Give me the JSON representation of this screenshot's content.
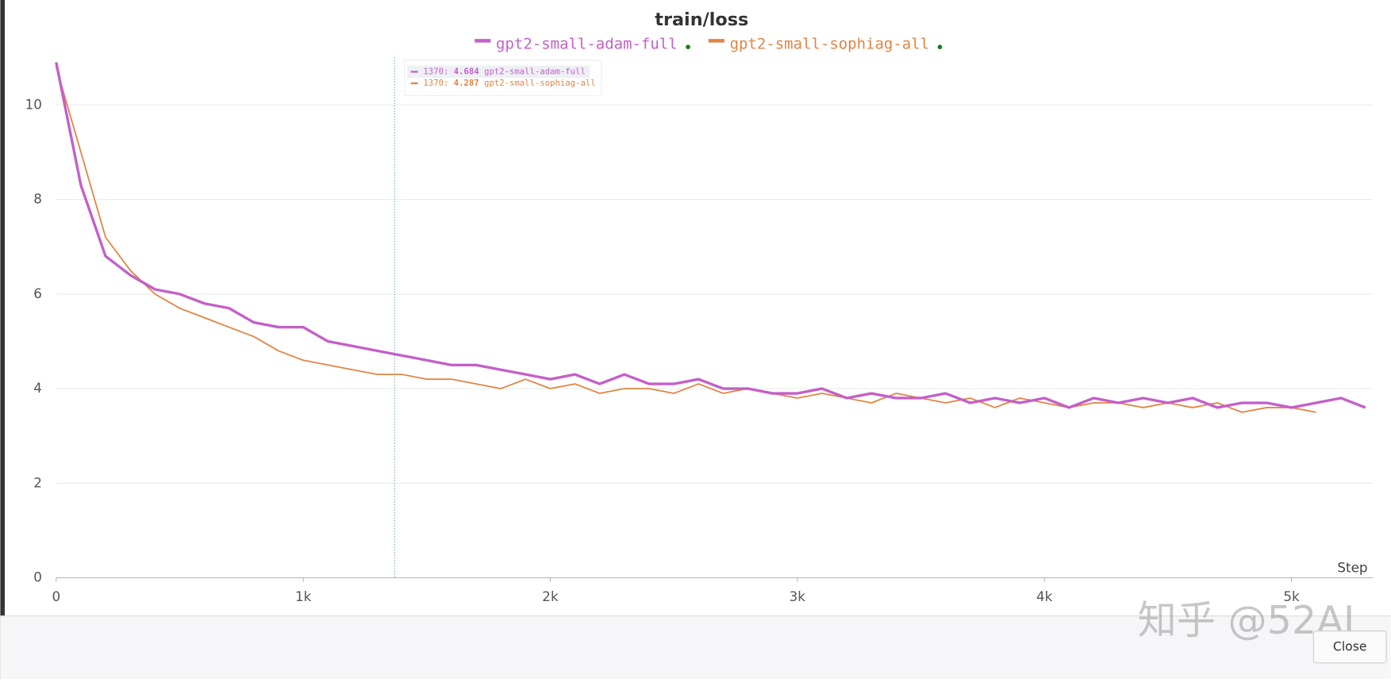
{
  "chart_data": {
    "type": "line",
    "title": "train/loss",
    "x": [
      0,
      100,
      200,
      300,
      400,
      500,
      600,
      700,
      800,
      900,
      1000,
      1100,
      1200,
      1300,
      1400,
      1500,
      1600,
      1700,
      1800,
      1900,
      2000,
      2100,
      2200,
      2300,
      2400,
      2500,
      2600,
      2700,
      2800,
      2900,
      3000,
      3100,
      3200,
      3300,
      3400,
      3500,
      3600,
      3700,
      3800,
      3900,
      4000,
      4100,
      4200,
      4300,
      4400,
      4500,
      4600,
      4700,
      4800,
      4900,
      5000,
      5100,
      5200,
      5300
    ],
    "series": [
      {
        "name": "gpt2-small-adam-full",
        "color": "#c45fc8",
        "values": [
          10.9,
          8.3,
          6.8,
          6.4,
          6.1,
          6.0,
          5.8,
          5.7,
          5.4,
          5.3,
          5.3,
          5.0,
          4.9,
          4.8,
          4.7,
          4.6,
          4.5,
          4.5,
          4.4,
          4.3,
          4.2,
          4.3,
          4.1,
          4.3,
          4.1,
          4.1,
          4.2,
          4.0,
          4.0,
          3.9,
          3.9,
          4.0,
          3.8,
          3.9,
          3.8,
          3.8,
          3.9,
          3.7,
          3.8,
          3.7,
          3.8,
          3.6,
          3.8,
          3.7,
          3.8,
          3.7,
          3.8,
          3.6,
          3.7,
          3.7,
          3.6,
          3.7,
          3.8,
          3.6
        ]
      },
      {
        "name": "gpt2-small-sophiag-all",
        "color": "#e08545",
        "values": [
          10.8,
          9.0,
          7.2,
          6.5,
          6.0,
          5.7,
          5.5,
          5.3,
          5.1,
          4.8,
          4.6,
          4.5,
          4.4,
          4.3,
          4.3,
          4.2,
          4.2,
          4.1,
          4.0,
          4.2,
          4.0,
          4.1,
          3.9,
          4.0,
          4.0,
          3.9,
          4.1,
          3.9,
          4.0,
          3.9,
          3.8,
          3.9,
          3.8,
          3.7,
          3.9,
          3.8,
          3.7,
          3.8,
          3.6,
          3.8,
          3.7,
          3.6,
          3.7,
          3.7,
          3.6,
          3.7,
          3.6,
          3.7,
          3.5,
          3.6,
          3.6,
          3.5,
          null,
          null
        ]
      }
    ],
    "xlim": [
      0,
      5330
    ],
    "ylim": [
      0,
      11
    ],
    "xticks": [
      0,
      {
        "value": 1000,
        "label": "1k"
      },
      {
        "value": 2000,
        "label": "2k"
      },
      {
        "value": 3000,
        "label": "3k"
      },
      {
        "value": 4000,
        "label": "4k"
      },
      {
        "value": 5000,
        "label": "5k"
      }
    ],
    "yticks": [
      0,
      2,
      4,
      6,
      8,
      10
    ],
    "xlabel": "Step",
    "grid": true,
    "tooltip": {
      "step": 1370,
      "values": [
        4.684,
        4.287
      ]
    }
  },
  "watermark": "知乎 @52AI",
  "button": "Close"
}
